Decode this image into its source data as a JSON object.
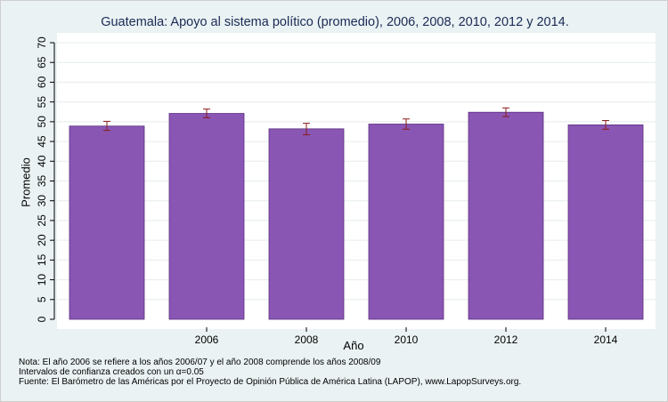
{
  "chart_data": {
    "type": "bar",
    "title": "Guatemala: Apoyo al sistema político (promedio), 2006, 2008, 2010, 2012 y 2014.",
    "xlabel": "Año",
    "ylabel": "Promedio",
    "categories": [
      "",
      "2006",
      "2008",
      "2010",
      "2012",
      "2014"
    ],
    "values": [
      48.9,
      52.1,
      48.2,
      49.4,
      52.4,
      49.2
    ],
    "ci_low": [
      47.8,
      51.0,
      46.7,
      48.1,
      51.3,
      48.1
    ],
    "ci_high": [
      50.1,
      53.2,
      49.6,
      50.7,
      53.5,
      50.3
    ],
    "ylim": [
      0,
      70
    ],
    "yticks": [
      0,
      5,
      10,
      15,
      20,
      25,
      30,
      35,
      40,
      45,
      50,
      55,
      60,
      65,
      70
    ],
    "grid": true,
    "bar_color": "#8a56b4",
    "error_bar_color": "#8b1c1c"
  },
  "notes": [
    "Nota: El año 2006 se refiere a los años 2006/07 y el año 2008 comprende los años 2008/09",
    "Intervalos de confianza creados con un α=0.05",
    "Fuente: El Barómetro de las Américas por el Proyecto de Opinión Pública de América Latina (LAPOP), www.LapopSurveys.org."
  ],
  "colors": {
    "background": "#eaf2f3",
    "plot_background": "#ffffff",
    "title_color": "#1a2a55"
  }
}
